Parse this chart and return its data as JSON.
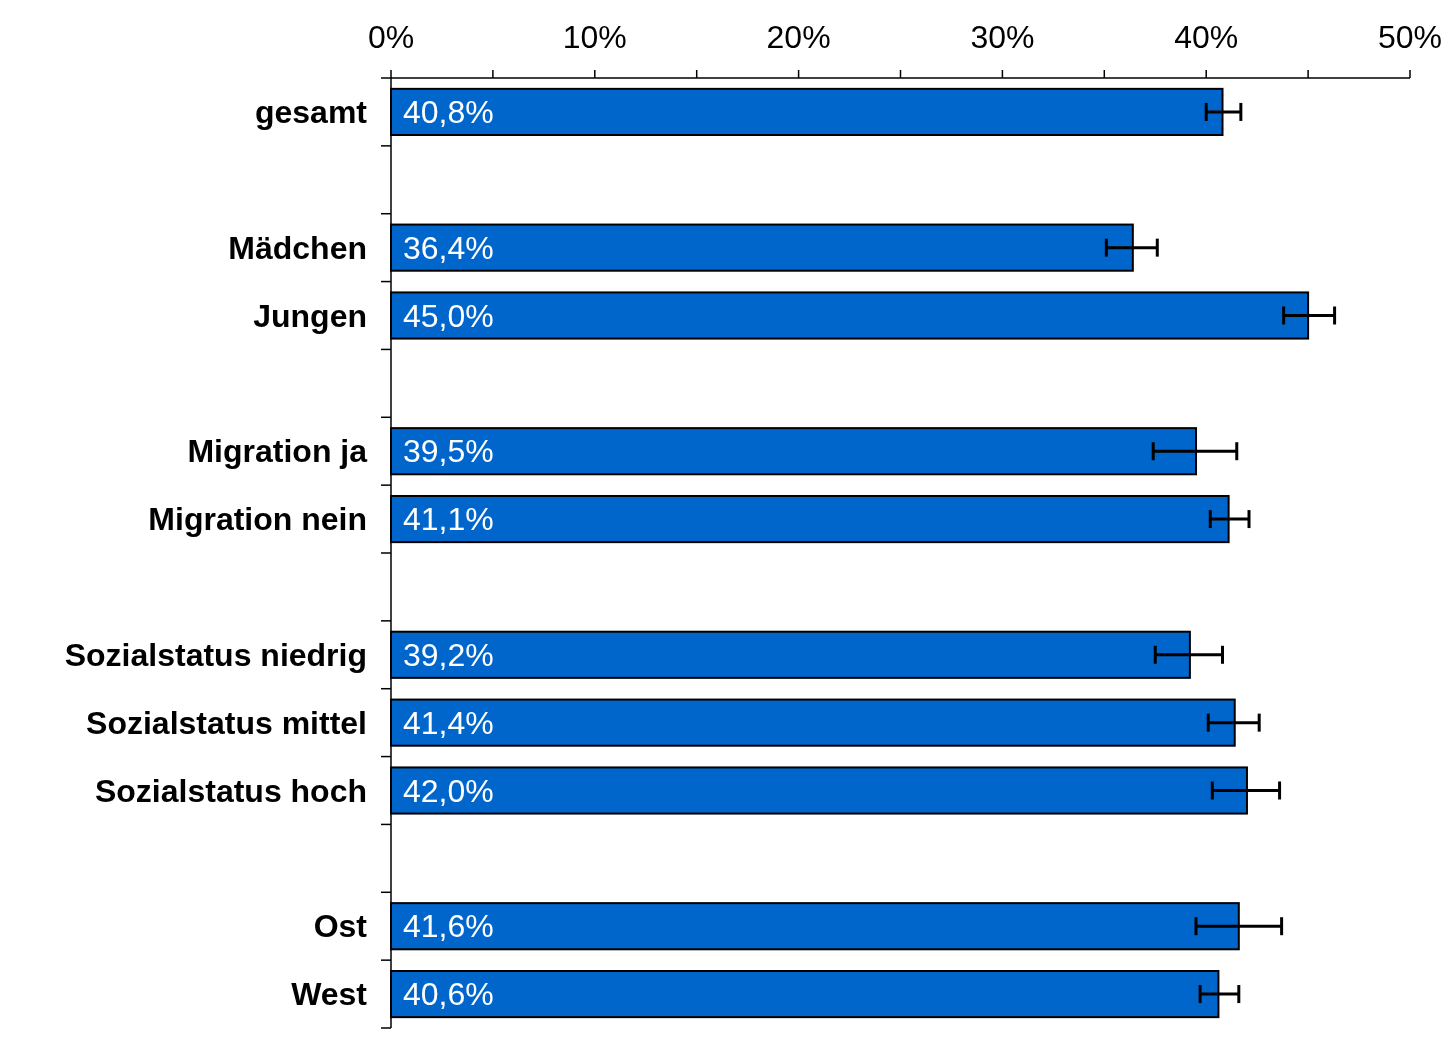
{
  "chart_data": {
    "type": "bar",
    "orientation": "horizontal",
    "categories": [
      "gesamt",
      null,
      "Mädchen",
      "Jungen",
      null,
      "Migration ja",
      "Migration nein",
      null,
      "Sozialstatus niedrig",
      "Sozialstatus mittel",
      "Sozialstatus hoch",
      null,
      "Ost",
      "West"
    ],
    "values": [
      40.8,
      null,
      36.4,
      45.0,
      null,
      39.5,
      41.1,
      null,
      39.2,
      41.4,
      42.0,
      null,
      41.6,
      40.6
    ],
    "value_labels": [
      "40,8%",
      null,
      "36,4%",
      "45,0%",
      null,
      "39,5%",
      "41,1%",
      null,
      "39,2%",
      "41,4%",
      "42,0%",
      null,
      "41,6%",
      "40,6%"
    ],
    "errors": [
      [
        40.0,
        41.7
      ],
      null,
      [
        35.1,
        37.6
      ],
      [
        43.8,
        46.3
      ],
      null,
      [
        37.4,
        41.5
      ],
      [
        40.2,
        42.1
      ],
      null,
      [
        37.5,
        40.8
      ],
      [
        40.1,
        42.6
      ],
      [
        40.3,
        43.6
      ],
      null,
      [
        39.5,
        43.7
      ],
      [
        39.7,
        41.6
      ]
    ],
    "color": "#0066cc",
    "xlim": [
      0,
      50
    ],
    "xticks": [
      {
        "value": 0,
        "label": "0%"
      },
      {
        "value": 5,
        "label": null
      },
      {
        "value": 10,
        "label": "10%"
      },
      {
        "value": 15,
        "label": null
      },
      {
        "value": 20,
        "label": "20%"
      },
      {
        "value": 25,
        "label": null
      },
      {
        "value": 30,
        "label": "30%"
      },
      {
        "value": 35,
        "label": null
      },
      {
        "value": 40,
        "label": "40%"
      },
      {
        "value": 45,
        "label": null
      },
      {
        "value": 50,
        "label": "50%"
      }
    ],
    "grid": false
  }
}
